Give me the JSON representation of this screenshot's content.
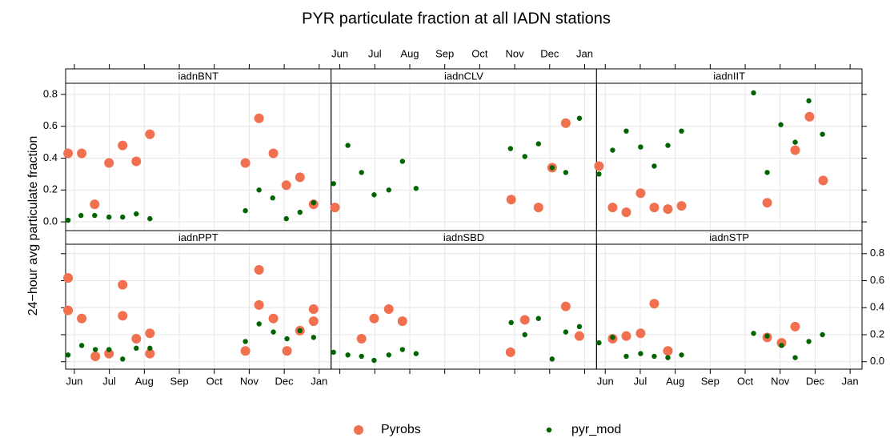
{
  "chart_data": {
    "type": "scatter",
    "title": "PYR particulate fraction at all IADN stations",
    "ylabel": "24−hour avg particulate fraction",
    "xlim": [
      5.75,
      13.34
    ],
    "xticks": [
      {
        "value": 6,
        "label": "Jun"
      },
      {
        "value": 7,
        "label": "Jul"
      },
      {
        "value": 8,
        "label": "Aug"
      },
      {
        "value": 9,
        "label": "Sep"
      },
      {
        "value": 10,
        "label": "Oct"
      },
      {
        "value": 11,
        "label": "Nov"
      },
      {
        "value": 12,
        "label": "Dec"
      },
      {
        "value": 13,
        "label": "Jan"
      }
    ],
    "ylim": [
      -0.055,
      0.87
    ],
    "yticks": [
      {
        "value": 0,
        "label": "0.0"
      },
      {
        "value": 0.2,
        "label": "0.2"
      },
      {
        "value": 0.4,
        "label": "0.4"
      },
      {
        "value": 0.6,
        "label": "0.6"
      },
      {
        "value": 0.8,
        "label": "0.8"
      }
    ],
    "grid": true,
    "legend": [
      {
        "name": "Pyrobs",
        "color": "#f07050"
      },
      {
        "name": "pyr_mod",
        "color": "#006400"
      }
    ],
    "panels": [
      {
        "name": "iadnBNT",
        "series": [
          {
            "x": [
              5.82,
              6.21,
              6.58,
              6.99,
              7.38,
              7.77,
              8.16,
              10.89,
              11.28,
              11.69,
              12.06,
              12.45,
              12.84
            ],
            "values": [
              0.43,
              0.43,
              0.11,
              0.37,
              0.48,
              0.38,
              0.55,
              0.37,
              0.65,
              0.43,
              0.23,
              0.28,
              0.11
            ]
          },
          {
            "x": [
              5.82,
              6.19,
              6.58,
              6.99,
              7.38,
              7.77,
              8.16,
              10.89,
              11.28,
              11.67,
              12.06,
              12.45,
              12.84
            ],
            "values": [
              0.01,
              0.04,
              0.04,
              0.03,
              0.03,
              0.05,
              0.02,
              0.07,
              0.2,
              0.15,
              0.02,
              0.06,
              0.12
            ]
          }
        ]
      },
      {
        "name": "iadnCLV",
        "series": [
          {
            "x": [
              5.86,
              10.9,
              11.68,
              12.07,
              12.46
            ],
            "values": [
              0.09,
              0.14,
              0.09,
              0.34,
              0.62
            ]
          },
          {
            "x": [
              5.82,
              6.23,
              6.62,
              6.98,
              7.4,
              7.79,
              8.18,
              10.88,
              11.29,
              11.68,
              12.07,
              12.46,
              12.85
            ],
            "values": [
              0.24,
              0.48,
              0.31,
              0.17,
              0.2,
              0.38,
              0.21,
              0.46,
              0.41,
              0.49,
              0.34,
              0.31,
              0.65
            ]
          }
        ]
      },
      {
        "name": "iadnIIT",
        "series": [
          {
            "x": [
              5.82,
              6.21,
              6.6,
              7.01,
              7.4,
              7.79,
              8.18,
              10.63,
              11.43,
              11.84,
              12.23
            ],
            "values": [
              0.35,
              0.09,
              0.06,
              0.18,
              0.09,
              0.08,
              0.1,
              0.12,
              0.45,
              0.66,
              0.26
            ]
          },
          {
            "x": [
              5.82,
              6.21,
              6.6,
              7.01,
              7.4,
              7.79,
              8.18,
              10.24,
              10.63,
              11.02,
              11.43,
              11.82,
              12.21
            ],
            "values": [
              0.3,
              0.45,
              0.57,
              0.47,
              0.35,
              0.48,
              0.57,
              0.81,
              0.31,
              0.61,
              0.5,
              0.76,
              0.55
            ]
          }
        ]
      },
      {
        "name": "iadnPPT",
        "series": [
          {
            "x": [
              5.82,
              5.82,
              6.21,
              6.6,
              6.99,
              7.38,
              7.38,
              7.77,
              8.16,
              8.16,
              10.89,
              11.28,
              11.28,
              11.69,
              12.08,
              12.45,
              12.84,
              12.84
            ],
            "values": [
              0.62,
              0.38,
              0.32,
              0.04,
              0.06,
              0.57,
              0.34,
              0.17,
              0.21,
              0.06,
              0.08,
              0.68,
              0.42,
              0.32,
              0.08,
              0.23,
              0.39,
              0.3
            ]
          },
          {
            "x": [
              5.82,
              6.21,
              6.6,
              6.99,
              7.38,
              7.77,
              8.16,
              10.89,
              11.28,
              11.69,
              12.08,
              12.45,
              12.84
            ],
            "values": [
              0.05,
              0.12,
              0.09,
              0.09,
              0.02,
              0.1,
              0.1,
              0.15,
              0.28,
              0.22,
              0.17,
              0.23,
              0.18
            ]
          }
        ]
      },
      {
        "name": "iadnSBD",
        "series": [
          {
            "x": [
              6.62,
              6.98,
              7.4,
              7.79,
              10.88,
              11.29,
              12.46,
              12.85
            ],
            "values": [
              0.17,
              0.32,
              0.39,
              0.3,
              0.07,
              0.31,
              0.41,
              0.19
            ]
          },
          {
            "x": [
              5.82,
              6.23,
              6.62,
              6.98,
              7.4,
              7.79,
              8.18,
              10.9,
              11.29,
              11.68,
              12.07,
              12.46,
              12.85
            ],
            "values": [
              0.07,
              0.05,
              0.04,
              0.01,
              0.05,
              0.09,
              0.06,
              0.29,
              0.2,
              0.32,
              0.02,
              0.22,
              0.26
            ]
          }
        ]
      },
      {
        "name": "iadnSTP",
        "series": [
          {
            "x": [
              6.21,
              6.6,
              7.01,
              7.4,
              7.79,
              10.63,
              11.04,
              11.43
            ],
            "values": [
              0.17,
              0.19,
              0.21,
              0.43,
              0.08,
              0.18,
              0.14,
              0.26
            ]
          },
          {
            "x": [
              5.82,
              6.21,
              6.6,
              7.01,
              7.4,
              7.79,
              8.18,
              10.24,
              10.63,
              11.04,
              11.43,
              11.82,
              12.21
            ],
            "values": [
              0.14,
              0.18,
              0.04,
              0.06,
              0.04,
              0.03,
              0.05,
              0.21,
              0.19,
              0.12,
              0.03,
              0.15,
              0.2
            ]
          }
        ]
      }
    ]
  }
}
